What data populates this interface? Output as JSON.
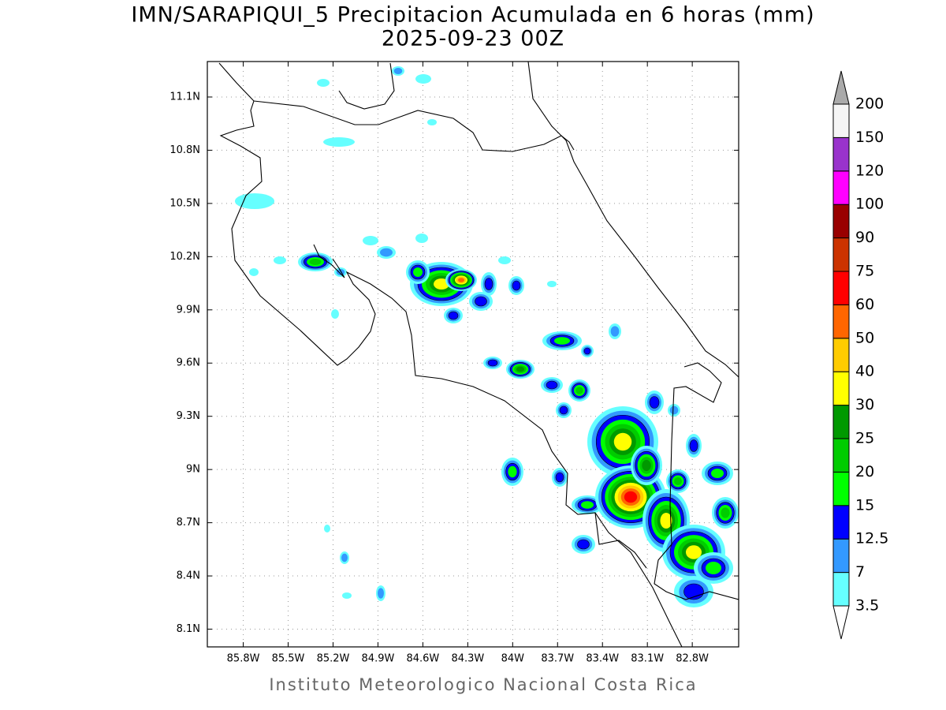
{
  "title": "IMN/SARAPIQUI_5 Precipitacion Acumulada en 6 horas (mm)",
  "subtitle": "2025-09-23 00Z",
  "footer": "Instituto Meteorologico Nacional Costa Rica",
  "map": {
    "xlim": [
      -86.04,
      -82.49
    ],
    "ylim": [
      8.0,
      11.3
    ],
    "xticks": [
      {
        "value": -85.8,
        "label": "85.8W"
      },
      {
        "value": -85.5,
        "label": "85.5W"
      },
      {
        "value": -85.2,
        "label": "85.2W"
      },
      {
        "value": -84.9,
        "label": "84.9W"
      },
      {
        "value": -84.6,
        "label": "84.6W"
      },
      {
        "value": -84.3,
        "label": "84.3W"
      },
      {
        "value": -84.0,
        "label": "84W"
      },
      {
        "value": -83.7,
        "label": "83.7W"
      },
      {
        "value": -83.4,
        "label": "83.4W"
      },
      {
        "value": -83.1,
        "label": "83.1W"
      },
      {
        "value": -82.8,
        "label": "82.8W"
      }
    ],
    "yticks": [
      {
        "value": 8.1,
        "label": "8.1N"
      },
      {
        "value": 8.4,
        "label": "8.4N"
      },
      {
        "value": 8.7,
        "label": "8.7N"
      },
      {
        "value": 9.0,
        "label": "9N"
      },
      {
        "value": 9.3,
        "label": "9.3N"
      },
      {
        "value": 9.6,
        "label": "9.6N"
      },
      {
        "value": 9.9,
        "label": "9.9N"
      },
      {
        "value": 10.2,
        "label": "10.2N"
      },
      {
        "value": 10.5,
        "label": "10.5N"
      },
      {
        "value": 10.8,
        "label": "10.8N"
      },
      {
        "value": 11.1,
        "label": "11.1N"
      }
    ],
    "grid": true
  },
  "colorbar": {
    "levels": [
      3.5,
      7,
      12.5,
      15,
      20,
      25,
      30,
      40,
      50,
      60,
      75,
      90,
      100,
      120,
      150,
      200
    ],
    "colors": [
      "#66ffff",
      "#3399ff",
      "#0000ff",
      "#00ff00",
      "#00cc00",
      "#009900",
      "#ffff00",
      "#ffcc00",
      "#ff6600",
      "#ff0000",
      "#cc3300",
      "#990000",
      "#ff00ff",
      "#9933cc",
      "#f5f5f5"
    ],
    "under_color": "#ffffff",
    "over_color": "#aaaaaa"
  }
}
